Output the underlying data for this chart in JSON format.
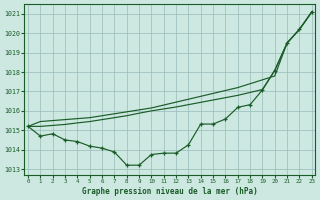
{
  "xlabel": "Graphe pression niveau de la mer (hPa)",
  "bg_color": "#cce8e0",
  "line_color": "#1a5c28",
  "grid_color": "#99bbbb",
  "ylim": [
    1012.7,
    1021.5
  ],
  "yticks": [
    1013,
    1014,
    1015,
    1016,
    1017,
    1018,
    1019,
    1020,
    1021
  ],
  "xticks": [
    0,
    1,
    2,
    3,
    4,
    5,
    6,
    7,
    8,
    9,
    10,
    11,
    12,
    13,
    14,
    15,
    16,
    17,
    18,
    19,
    20,
    21,
    22,
    23
  ],
  "smooth1": [
    1015.2,
    1015.45,
    1015.5,
    1015.55,
    1015.6,
    1015.65,
    1015.75,
    1015.85,
    1015.95,
    1016.05,
    1016.15,
    1016.3,
    1016.45,
    1016.6,
    1016.75,
    1016.9,
    1017.05,
    1017.2,
    1017.4,
    1017.6,
    1017.8,
    1019.5,
    1020.2,
    1021.1
  ],
  "smooth2": [
    1015.2,
    1015.2,
    1015.25,
    1015.3,
    1015.38,
    1015.45,
    1015.55,
    1015.65,
    1015.75,
    1015.88,
    1016.0,
    1016.1,
    1016.2,
    1016.32,
    1016.44,
    1016.56,
    1016.68,
    1016.8,
    1016.95,
    1017.1,
    1018.1,
    1019.5,
    1020.2,
    1021.1
  ],
  "jagged": [
    1015.2,
    1014.7,
    1014.82,
    1014.5,
    1014.42,
    1014.18,
    1014.08,
    1013.88,
    1013.2,
    1013.2,
    1013.75,
    1013.82,
    1013.82,
    1014.25,
    1015.32,
    1015.32,
    1015.58,
    1016.18,
    1016.32,
    1017.08,
    1018.08,
    1019.5,
    1020.2,
    1021.1
  ]
}
